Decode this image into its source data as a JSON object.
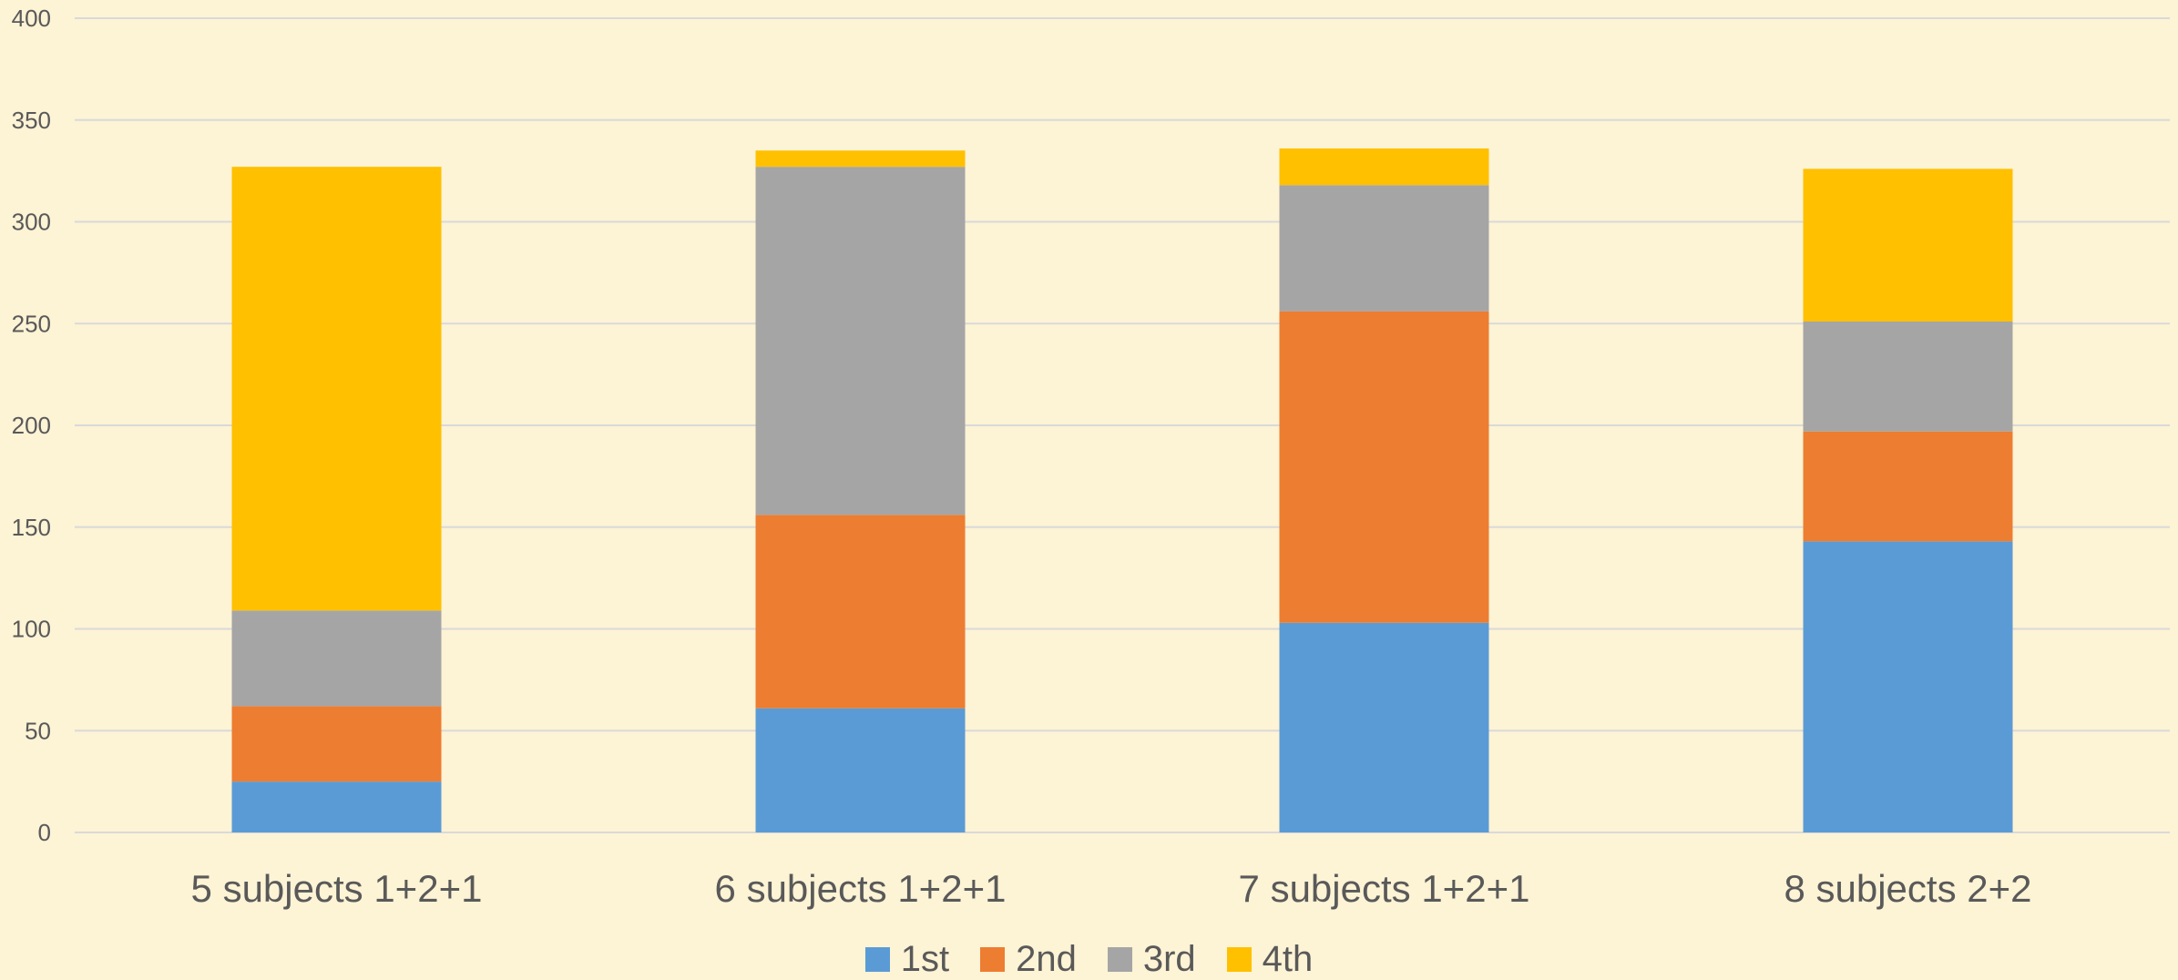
{
  "chart_data": {
    "type": "bar",
    "stacked": true,
    "categories": [
      "5 subjects 1+2+1",
      "6 subjects 1+2+1",
      "7 subjects 1+2+1",
      "8 subjects 2+2"
    ],
    "series": [
      {
        "name": "1st",
        "color": "#5b9bd5",
        "values": [
          25,
          61,
          103,
          143
        ]
      },
      {
        "name": "2nd",
        "color": "#ed7d31",
        "values": [
          37,
          95,
          153,
          54
        ]
      },
      {
        "name": "3rd",
        "color": "#a5a5a5",
        "values": [
          47,
          171,
          62,
          54
        ]
      },
      {
        "name": "4th",
        "color": "#ffc000",
        "values": [
          218,
          8,
          18,
          75
        ]
      }
    ],
    "yticks": [
      0,
      50,
      100,
      150,
      200,
      250,
      300,
      350,
      400
    ],
    "ylim": [
      0,
      400
    ],
    "grid": true,
    "legend_position": "bottom",
    "title": "",
    "xlabel": "",
    "ylabel": ""
  },
  "colors": {
    "background": "#fdf3d5",
    "gridline": "#d9d9d9",
    "tick_text": "#595959"
  }
}
